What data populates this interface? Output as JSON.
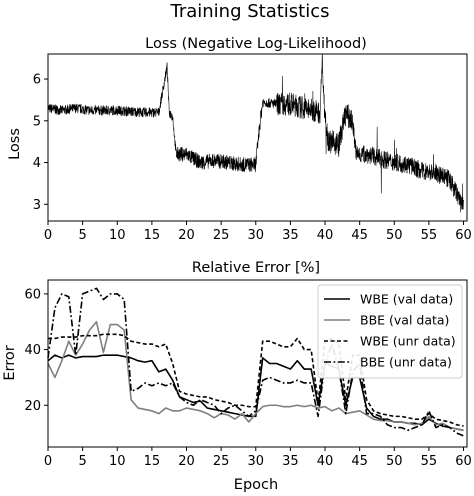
{
  "chart_data": [
    {
      "type": "line",
      "suptitle": "Training Statistics",
      "title": "Loss (Negative Log-Likelihood)",
      "xlabel": "",
      "ylabel": "Loss",
      "xlim": [
        0,
        60.5
      ],
      "ylim": [
        2.6,
        6.6
      ],
      "xticks": [
        0,
        5,
        10,
        15,
        20,
        25,
        30,
        35,
        40,
        45,
        50,
        55,
        60
      ],
      "yticks": [
        3,
        4,
        5,
        6
      ],
      "grid": false,
      "color": "#000000",
      "series": [
        {
          "name": "",
          "points": [
            [
              0,
              5.3
            ],
            [
              2,
              5.25
            ],
            [
              4,
              5.3
            ],
            [
              6,
              5.25
            ],
            [
              8,
              5.25
            ],
            [
              10,
              5.25
            ],
            [
              12,
              5.22
            ],
            [
              14,
              5.2
            ],
            [
              16,
              5.2
            ],
            [
              17.2,
              6.3
            ],
            [
              17.5,
              5.2
            ],
            [
              18,
              5.1
            ],
            [
              18.5,
              4.2
            ],
            [
              20,
              4.2
            ],
            [
              22,
              4.0
            ],
            [
              24,
              4.05
            ],
            [
              26,
              4.0
            ],
            [
              28,
              3.95
            ],
            [
              30,
              3.95
            ],
            [
              30.5,
              4.8
            ],
            [
              31,
              5.45
            ],
            [
              33,
              5.4
            ],
            [
              35,
              5.4
            ],
            [
              37,
              5.3
            ],
            [
              39.3,
              5.2
            ],
            [
              39.6,
              6.5
            ],
            [
              39.9,
              5.3
            ],
            [
              40.5,
              4.5
            ],
            [
              42,
              4.45
            ],
            [
              43,
              5.2
            ],
            [
              44,
              4.95
            ],
            [
              44.5,
              4.2
            ],
            [
              46,
              4.2
            ],
            [
              48,
              4.1
            ],
            [
              50,
              4.0
            ],
            [
              52,
              3.95
            ],
            [
              54,
              3.8
            ],
            [
              56,
              3.75
            ],
            [
              58,
              3.6
            ],
            [
              59.5,
              3.1
            ],
            [
              60,
              3.0
            ]
          ]
        }
      ]
    },
    {
      "type": "line",
      "title": "Relative Error [%]",
      "xlabel": "Epoch",
      "ylabel": "Error",
      "xlim": [
        0,
        60.5
      ],
      "ylim": [
        5,
        65
      ],
      "xticks": [
        0,
        5,
        10,
        15,
        20,
        25,
        30,
        35,
        40,
        45,
        50,
        55,
        60
      ],
      "yticks": [
        20,
        40,
        60
      ],
      "grid": false,
      "legend": "top-right",
      "series": [
        {
          "name": "WBE (val data)",
          "color": "#000000",
          "dash": "solid",
          "x": [
            0,
            1,
            2,
            3,
            4,
            5,
            6,
            7,
            8,
            9,
            10,
            11,
            12,
            13,
            14,
            15,
            16,
            17,
            18,
            19,
            20,
            21,
            22,
            23,
            24,
            25,
            26,
            27,
            28,
            29,
            30,
            31,
            32,
            33,
            34,
            35,
            36,
            37,
            38,
            39,
            40,
            41,
            42,
            43,
            44,
            45,
            46,
            47,
            48,
            49,
            50,
            51,
            52,
            53,
            54,
            55,
            56,
            57,
            58,
            59,
            60
          ],
          "values": [
            36,
            38,
            37,
            38,
            37,
            37.5,
            37.5,
            37.5,
            38,
            38,
            38,
            37.5,
            37,
            36,
            35.5,
            36,
            32,
            33,
            29,
            23,
            22,
            21,
            21.5,
            19,
            18.5,
            18,
            17.5,
            17,
            16.5,
            16,
            16,
            37,
            35,
            35,
            34,
            33,
            36,
            33,
            33,
            20,
            35,
            34,
            33,
            20,
            30,
            30,
            19,
            16,
            15,
            15,
            14,
            14,
            13.5,
            13.5,
            13,
            15,
            13.5,
            12.5,
            12,
            11.5,
            11
          ]
        },
        {
          "name": "BBE (val data)",
          "color": "#7f7f7f",
          "dash": "solid",
          "x": [
            0,
            1,
            2,
            3,
            4,
            5,
            6,
            7,
            8,
            9,
            10,
            11,
            12,
            13,
            14,
            15,
            16,
            17,
            18,
            19,
            20,
            21,
            22,
            23,
            24,
            25,
            26,
            27,
            28,
            29,
            30,
            31,
            32,
            33,
            34,
            35,
            36,
            37,
            38,
            39,
            40,
            41,
            42,
            43,
            44,
            45,
            46,
            47,
            48,
            49,
            50,
            51,
            52,
            53,
            54,
            55,
            56,
            57,
            58,
            59,
            60
          ],
          "values": [
            35,
            30,
            36,
            43,
            38,
            42,
            47,
            50,
            39,
            49,
            49,
            47,
            22,
            19,
            18.5,
            18,
            17,
            19,
            18,
            18,
            19,
            18.5,
            18,
            17,
            15.5,
            17,
            16.5,
            15,
            17,
            14,
            17,
            19.5,
            20,
            20,
            19.5,
            19.5,
            20,
            19.5,
            20,
            19,
            19.5,
            18,
            19,
            17,
            17.5,
            18,
            16.5,
            15,
            14.5,
            14.5,
            14,
            14,
            13.5,
            13,
            13.5,
            16,
            13,
            13.5,
            12,
            11.5,
            11
          ]
        },
        {
          "name": "WBE (unr data)",
          "color": "#000000",
          "dash": "dashed",
          "x": [
            0,
            1,
            2,
            3,
            4,
            5,
            6,
            7,
            8,
            9,
            10,
            11,
            12,
            13,
            14,
            15,
            16,
            17,
            18,
            19,
            20,
            21,
            22,
            23,
            24,
            25,
            26,
            27,
            28,
            29,
            30,
            31,
            32,
            33,
            34,
            35,
            36,
            37,
            38,
            39,
            40,
            41,
            42,
            43,
            44,
            45,
            46,
            47,
            48,
            49,
            50,
            51,
            52,
            53,
            54,
            55,
            56,
            57,
            58,
            59,
            60
          ],
          "values": [
            44,
            44,
            44.5,
            44.5,
            44.5,
            45,
            45,
            45,
            45.5,
            45.5,
            45.5,
            45,
            43,
            42.5,
            42,
            42,
            41,
            42,
            35,
            25,
            24,
            23.5,
            23,
            23,
            22,
            21.5,
            21,
            20,
            20,
            19.5,
            19.5,
            43,
            43,
            42,
            41,
            41,
            44,
            40,
            40,
            21,
            43,
            44,
            42,
            22,
            38,
            38,
            22,
            18,
            17,
            16.5,
            16,
            16,
            15.5,
            15,
            15,
            17,
            15,
            14.5,
            14,
            13,
            12.5
          ]
        },
        {
          "name": "BBE (unr data)",
          "color": "#000000",
          "dash": "dashdot",
          "x": [
            0,
            1,
            2,
            3,
            4,
            5,
            6,
            7,
            8,
            9,
            10,
            11,
            12,
            13,
            14,
            15,
            16,
            17,
            18,
            19,
            20,
            21,
            22,
            23,
            24,
            25,
            26,
            27,
            28,
            29,
            30,
            31,
            32,
            33,
            34,
            35,
            36,
            37,
            38,
            39,
            40,
            41,
            42,
            43,
            44,
            45,
            46,
            47,
            48,
            49,
            50,
            51,
            52,
            53,
            54,
            55,
            56,
            57,
            58,
            59,
            60
          ],
          "values": [
            37,
            55,
            60,
            59,
            38,
            60,
            61,
            62,
            58,
            60,
            60,
            58,
            25,
            26,
            28,
            27,
            28,
            27,
            28,
            23,
            21,
            20,
            22,
            21,
            20,
            17,
            19,
            20,
            18,
            16,
            18,
            29,
            30,
            29,
            28,
            28,
            29,
            28,
            28,
            16,
            35,
            42,
            33,
            17,
            32,
            35,
            17,
            17,
            16,
            13,
            12,
            12,
            11,
            12,
            13,
            18,
            12,
            13,
            12,
            10,
            9
          ]
        }
      ]
    }
  ]
}
